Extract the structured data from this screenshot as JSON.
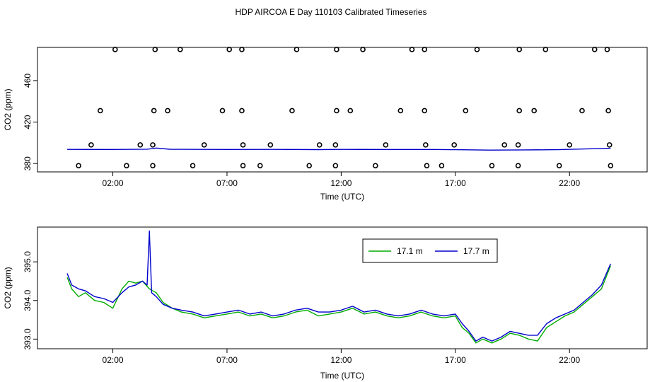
{
  "figure": {
    "title": "HDP AIRCOA E  Day 110103  Calibrated Timeseries"
  },
  "chart_data": [
    {
      "type": "scatter",
      "xlabel": "Time (UTC)",
      "ylabel": "CO2 (ppm)",
      "xlim": [
        -1.3,
        25.4
      ],
      "ylim": [
        372,
        492
      ],
      "x_ticks": [
        2,
        7,
        12,
        17,
        22
      ],
      "x_tick_labels": [
        "02:00",
        "07:00",
        "12:00",
        "17:00",
        "22:00"
      ],
      "y_ticks": [
        380,
        420,
        460
      ],
      "y_tick_labels": [
        "380",
        "420",
        "460"
      ],
      "marker": "open-circle",
      "grid": false,
      "series": [
        {
          "color": "#000000",
          "points": [
            [
              2.1,
              490
            ],
            [
              3.85,
              490
            ],
            [
              4.95,
              490
            ],
            [
              7.1,
              490
            ],
            [
              7.65,
              490
            ],
            [
              10.05,
              490
            ],
            [
              11.8,
              490
            ],
            [
              12.95,
              490
            ],
            [
              15.1,
              490
            ],
            [
              15.65,
              490
            ],
            [
              17.95,
              490
            ],
            [
              19.8,
              490
            ],
            [
              20.95,
              490
            ],
            [
              23.1,
              490
            ],
            [
              23.65,
              490
            ],
            [
              1.45,
              431
            ],
            [
              3.8,
              431
            ],
            [
              4.4,
              431
            ],
            [
              6.8,
              431
            ],
            [
              7.65,
              431
            ],
            [
              9.85,
              431
            ],
            [
              11.8,
              431
            ],
            [
              12.4,
              431
            ],
            [
              14.6,
              431
            ],
            [
              15.65,
              431
            ],
            [
              17.45,
              431
            ],
            [
              19.8,
              431
            ],
            [
              20.45,
              431
            ],
            [
              22.55,
              431
            ],
            [
              23.7,
              431
            ],
            [
              1.05,
              398
            ],
            [
              3.2,
              398
            ],
            [
              3.75,
              398
            ],
            [
              6.0,
              398
            ],
            [
              7.7,
              398
            ],
            [
              8.9,
              398
            ],
            [
              11.05,
              398
            ],
            [
              11.75,
              398
            ],
            [
              13.95,
              398
            ],
            [
              15.7,
              398
            ],
            [
              16.95,
              398
            ],
            [
              19.15,
              398
            ],
            [
              19.75,
              398
            ],
            [
              22.0,
              398
            ],
            [
              23.75,
              398
            ],
            [
              0.5,
              378
            ],
            [
              2.6,
              378
            ],
            [
              3.75,
              378
            ],
            [
              5.5,
              378
            ],
            [
              7.7,
              378
            ],
            [
              8.45,
              378
            ],
            [
              10.6,
              378
            ],
            [
              11.75,
              378
            ],
            [
              13.5,
              378
            ],
            [
              15.75,
              378
            ],
            [
              16.4,
              378
            ],
            [
              18.6,
              378
            ],
            [
              19.75,
              378
            ],
            [
              21.55,
              378
            ],
            [
              23.8,
              378
            ]
          ]
        },
        {
          "name": "",
          "type": "line",
          "color": "#0000cc",
          "x": [
            0,
            2,
            3.5,
            3.9,
            4.5,
            7,
            9,
            11,
            12,
            14,
            16,
            17,
            18.5,
            20,
            21.5,
            23.8
          ],
          "values": [
            393.7,
            393.6,
            393.9,
            395.0,
            393.8,
            393.6,
            393.7,
            393.5,
            393.7,
            393.6,
            393.6,
            393.4,
            393.0,
            393.2,
            393.4,
            394.8
          ]
        }
      ]
    },
    {
      "type": "line",
      "xlabel": "Time (UTC)",
      "ylabel": "CO2 (ppm)",
      "xlim": [
        -1.3,
        25.4
      ],
      "ylim": [
        392.75,
        395.9
      ],
      "x_ticks": [
        2,
        7,
        12,
        17,
        22
      ],
      "x_tick_labels": [
        "02:00",
        "07:00",
        "12:00",
        "17:00",
        "22:00"
      ],
      "y_ticks": [
        393.0,
        394.0,
        395.0
      ],
      "y_tick_labels": [
        "393.0",
        "394.0",
        "395.0"
      ],
      "grid": false,
      "legend_position": "top-right",
      "series": [
        {
          "name": "17.1 m",
          "color": "#00aa00",
          "x": [
            0,
            0.2,
            0.5,
            0.8,
            1.2,
            1.6,
            2.0,
            2.4,
            2.7,
            3.0,
            3.3,
            3.6,
            3.9,
            4.2,
            4.6,
            5.0,
            5.5,
            6.0,
            6.5,
            7.0,
            7.5,
            8.0,
            8.5,
            9.0,
            9.5,
            10.0,
            10.5,
            11.0,
            11.5,
            12.0,
            12.5,
            13.0,
            13.5,
            14.0,
            14.5,
            15.0,
            15.5,
            16.0,
            16.5,
            17.0,
            17.3,
            17.6,
            17.9,
            18.2,
            18.6,
            19.0,
            19.4,
            19.8,
            20.2,
            20.6,
            21.0,
            21.4,
            21.8,
            22.2,
            22.6,
            23.0,
            23.4,
            23.8
          ],
          "values": [
            394.6,
            394.3,
            394.1,
            394.2,
            394.0,
            393.95,
            393.8,
            394.3,
            394.5,
            394.45,
            394.5,
            394.3,
            394.2,
            393.95,
            393.8,
            393.7,
            393.65,
            393.55,
            393.6,
            393.65,
            393.7,
            393.6,
            393.65,
            393.55,
            393.6,
            393.7,
            393.75,
            393.6,
            393.65,
            393.7,
            393.8,
            393.65,
            393.7,
            393.6,
            393.55,
            393.6,
            393.7,
            393.6,
            393.55,
            393.6,
            393.3,
            393.15,
            392.9,
            393.0,
            392.9,
            393.0,
            393.15,
            393.1,
            393.0,
            392.95,
            393.3,
            393.45,
            393.6,
            393.7,
            393.9,
            394.1,
            394.3,
            394.9
          ]
        },
        {
          "name": "17.7 m",
          "color": "#0000cc",
          "x": [
            0,
            0.2,
            0.5,
            0.8,
            1.2,
            1.6,
            2.0,
            2.4,
            2.7,
            3.0,
            3.3,
            3.5,
            3.6,
            3.7,
            3.9,
            4.2,
            4.6,
            5.0,
            5.5,
            6.0,
            6.5,
            7.0,
            7.5,
            8.0,
            8.5,
            9.0,
            9.5,
            10.0,
            10.5,
            11.0,
            11.5,
            12.0,
            12.5,
            13.0,
            13.5,
            14.0,
            14.5,
            15.0,
            15.5,
            16.0,
            16.5,
            17.0,
            17.3,
            17.6,
            17.9,
            18.2,
            18.6,
            19.0,
            19.4,
            19.8,
            20.2,
            20.6,
            21.0,
            21.4,
            21.8,
            22.2,
            22.6,
            23.0,
            23.4,
            23.8
          ],
          "values": [
            394.7,
            394.4,
            394.3,
            394.25,
            394.1,
            394.05,
            393.95,
            394.2,
            394.35,
            394.4,
            394.5,
            394.4,
            395.8,
            394.2,
            394.1,
            393.9,
            393.8,
            393.75,
            393.7,
            393.6,
            393.65,
            393.7,
            393.75,
            393.65,
            393.7,
            393.6,
            393.65,
            393.75,
            393.8,
            393.7,
            393.7,
            393.75,
            393.85,
            393.7,
            393.75,
            393.65,
            393.6,
            393.65,
            393.75,
            393.65,
            393.6,
            393.65,
            393.4,
            393.2,
            392.95,
            393.05,
            392.95,
            393.05,
            393.2,
            393.15,
            393.1,
            393.1,
            393.4,
            393.55,
            393.65,
            393.75,
            393.95,
            394.15,
            394.4,
            394.95
          ]
        }
      ]
    }
  ]
}
